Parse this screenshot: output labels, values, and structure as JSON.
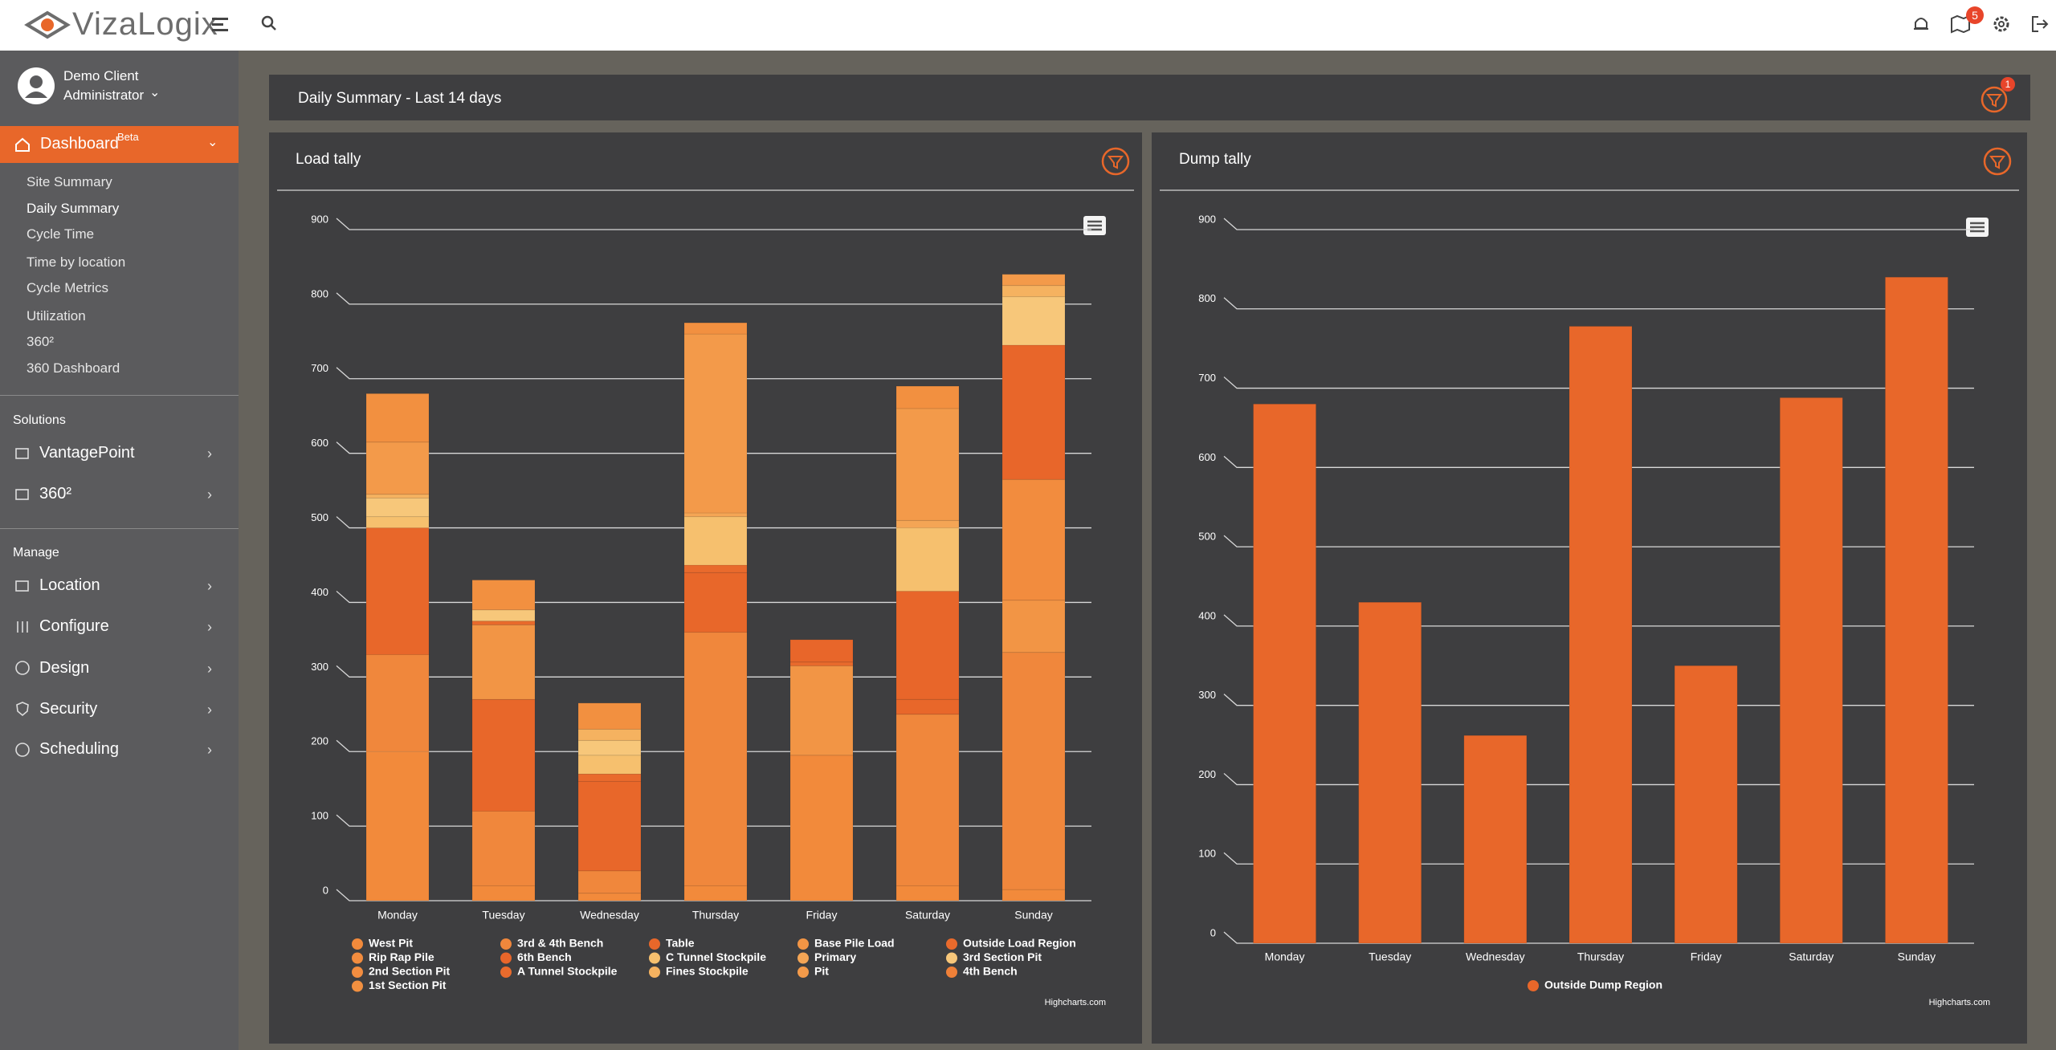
{
  "header": {
    "logo": "VizaLogix",
    "notification_badge": "5"
  },
  "sidebar": {
    "user_name": "Demo Client",
    "user_role": "Administrator",
    "dashboard": "Dashboard",
    "dashboard_tag": "Beta",
    "dashboard_items": [
      "Site Summary",
      "Daily Summary",
      "Cycle Time",
      "Time by location",
      "Cycle Metrics",
      "Utilization",
      "360²",
      "360 Dashboard"
    ],
    "sections": [
      {
        "title": "Solutions",
        "items": [
          "VantagePoint",
          "360²"
        ]
      },
      {
        "title": "Manage",
        "items": [
          "Location",
          "Configure",
          "Design",
          "Security",
          "Scheduling"
        ]
      }
    ]
  },
  "page": {
    "title": "Daily Summary - Last 14 days",
    "filter_badge": "1"
  },
  "chart_data": [
    {
      "type": "bar",
      "stacked": true,
      "title": "Load tally",
      "categories": [
        "Monday",
        "Tuesday",
        "Wednesday",
        "Thursday",
        "Friday",
        "Saturday",
        "Sunday"
      ],
      "series": [
        {
          "name": "West Pit",
          "color": "#f28a3b",
          "values": [
            200,
            20,
            10,
            20,
            195,
            20,
            15
          ]
        },
        {
          "name": "3rd & 4th Bench",
          "color": "#f0873c",
          "values": [
            130,
            100,
            30,
            340,
            0,
            230,
            318
          ]
        },
        {
          "name": "Table",
          "color": "#e8672a",
          "values": [
            170,
            150,
            120,
            80,
            0,
            20,
            0
          ]
        },
        {
          "name": "Base Pile Load",
          "color": "#f29545",
          "values": [
            0,
            100,
            0,
            0,
            120,
            0,
            70
          ]
        },
        {
          "name": "Outside Load Region",
          "color": "#e96a2c",
          "values": [
            0,
            5,
            10,
            10,
            5,
            0,
            0
          ]
        },
        {
          "name": "Rip Rap Pile",
          "color": "#f28c3e",
          "values": [
            0,
            0,
            0,
            0,
            0,
            0,
            162
          ]
        },
        {
          "name": "6th Bench",
          "color": "#e8662a",
          "values": [
            0,
            0,
            0,
            0,
            30,
            145,
            180
          ]
        },
        {
          "name": "C Tunnel Stockpile",
          "color": "#f6c06e",
          "values": [
            15,
            0,
            25,
            65,
            0,
            85,
            0
          ]
        },
        {
          "name": "Primary",
          "color": "#f4a555",
          "values": [
            0,
            0,
            0,
            5,
            0,
            10,
            0
          ]
        },
        {
          "name": "3rd Section Pit",
          "color": "#f7c77a",
          "values": [
            25,
            15,
            20,
            0,
            0,
            0,
            65
          ]
        },
        {
          "name": "2nd Section Pit",
          "color": "#f28d40",
          "values": [
            0,
            0,
            0,
            0,
            0,
            0,
            0
          ]
        },
        {
          "name": "A Tunnel Stockpile",
          "color": "#e96b2d",
          "values": [
            0,
            0,
            0,
            0,
            0,
            0,
            0
          ]
        },
        {
          "name": "Fines Stockpile",
          "color": "#f5b260",
          "values": [
            5,
            0,
            15,
            0,
            0,
            0,
            15
          ]
        },
        {
          "name": "Pit",
          "color": "#f39a4a",
          "values": [
            70,
            0,
            0,
            240,
            0,
            150,
            15
          ]
        },
        {
          "name": "4th Bench",
          "color": "#ef8038",
          "values": [
            0,
            0,
            0,
            0,
            0,
            0,
            0
          ]
        },
        {
          "name": "1st Section Pit",
          "color": "#f29040",
          "values": [
            65,
            40,
            35,
            15,
            0,
            30,
            0
          ]
        }
      ],
      "ylim": [
        0,
        900
      ],
      "yticks": [
        0,
        100,
        200,
        300,
        400,
        500,
        600,
        700,
        800,
        900
      ],
      "grid": true,
      "credit": "Highcharts.com"
    },
    {
      "type": "bar",
      "stacked": true,
      "title": "Dump tally",
      "categories": [
        "Monday",
        "Tuesday",
        "Wednesday",
        "Thursday",
        "Friday",
        "Saturday",
        "Sunday"
      ],
      "series": [
        {
          "name": "Outside Dump Region",
          "color": "#e8672a",
          "values": [
            680,
            430,
            262,
            778,
            350,
            688,
            840
          ]
        }
      ],
      "ylim": [
        0,
        900
      ],
      "yticks": [
        0,
        100,
        200,
        300,
        400,
        500,
        600,
        700,
        800,
        900
      ],
      "grid": true,
      "credit": "Highcharts.com"
    }
  ]
}
